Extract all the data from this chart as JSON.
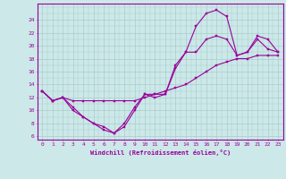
{
  "xlabel": "Windchill (Refroidissement éolien,°C)",
  "bg_color": "#cce8e8",
  "line_color": "#990099",
  "grid_color": "#aacccc",
  "xlim": [
    -0.5,
    23.5
  ],
  "ylim": [
    5.5,
    26.5
  ],
  "xticks": [
    0,
    1,
    2,
    3,
    4,
    5,
    6,
    7,
    8,
    9,
    10,
    11,
    12,
    13,
    14,
    15,
    16,
    17,
    18,
    19,
    20,
    21,
    22,
    23
  ],
  "yticks": [
    6,
    8,
    10,
    12,
    14,
    16,
    18,
    20,
    22,
    24
  ],
  "series1_x": [
    0,
    1,
    2,
    3,
    4,
    5,
    6,
    7,
    8,
    9,
    10,
    11,
    12,
    13,
    14,
    15,
    16,
    17,
    18,
    19,
    20,
    21,
    22,
    23
  ],
  "series1_y": [
    13,
    11.5,
    12,
    10,
    9,
    8,
    7,
    6.5,
    7.5,
    10,
    12.5,
    12,
    12.5,
    17,
    19,
    23,
    25,
    25.5,
    24.5,
    18.5,
    19,
    21,
    19.5,
    19
  ],
  "series2_x": [
    0,
    1,
    2,
    3,
    4,
    5,
    6,
    7,
    8,
    9,
    10,
    11,
    12,
    13,
    14,
    15,
    16,
    17,
    18,
    19,
    20,
    21,
    22,
    23
  ],
  "series2_y": [
    13,
    11.5,
    12,
    10.5,
    9,
    8,
    7.5,
    6.5,
    8,
    10.5,
    12.5,
    12.5,
    12.5,
    16.5,
    19,
    19,
    21,
    21.5,
    21,
    18.5,
    19,
    21.5,
    21,
    19
  ],
  "series3_x": [
    0,
    1,
    2,
    3,
    4,
    5,
    6,
    7,
    8,
    9,
    10,
    11,
    12,
    13,
    14,
    15,
    16,
    17,
    18,
    19,
    20,
    21,
    22,
    23
  ],
  "series3_y": [
    13,
    11.5,
    12,
    11.5,
    11.5,
    11.5,
    11.5,
    11.5,
    11.5,
    11.5,
    12,
    12.5,
    13,
    13.5,
    14,
    15,
    16,
    17,
    17.5,
    18,
    18,
    18.5,
    18.5,
    18.5
  ]
}
